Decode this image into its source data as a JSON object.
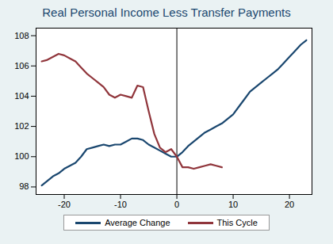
{
  "chart_data": {
    "type": "line",
    "title": "Real Personal Income Less Transfer Payments",
    "x": [
      -24,
      -23,
      -22,
      -21,
      -20,
      -19,
      -18,
      -17,
      -16,
      -15,
      -14,
      -13,
      -12,
      -11,
      -10,
      -9,
      -8,
      -7,
      -6,
      -5,
      -4,
      -3,
      -2,
      -1,
      0,
      1,
      2,
      3,
      4,
      5,
      6,
      7,
      8,
      9,
      10,
      11,
      12,
      13,
      14,
      15,
      16,
      17,
      18,
      19,
      20,
      21,
      22,
      23
    ],
    "series": [
      {
        "name": "Average Change",
        "color": "#1a476f",
        "values": [
          98.1,
          98.4,
          98.7,
          98.9,
          99.2,
          99.4,
          99.6,
          100.0,
          100.5,
          100.6,
          100.7,
          100.8,
          100.7,
          100.8,
          100.8,
          101.0,
          101.2,
          101.2,
          101.1,
          100.8,
          100.6,
          100.4,
          100.2,
          100.0,
          100.0,
          100.3,
          100.7,
          101.0,
          101.3,
          101.6,
          101.8,
          102.0,
          102.2,
          102.5,
          102.8,
          103.3,
          103.8,
          104.3,
          104.6,
          104.9,
          105.2,
          105.5,
          105.8,
          106.2,
          106.6,
          107.0,
          107.4,
          107.7
        ]
      },
      {
        "name": "This Cycle",
        "color": "#90353b",
        "values": [
          106.3,
          106.4,
          106.6,
          106.8,
          106.7,
          106.5,
          106.3,
          105.9,
          105.5,
          105.2,
          104.9,
          104.6,
          104.1,
          103.9,
          104.1,
          104.0,
          103.9,
          104.7,
          104.6,
          103.0,
          101.5,
          100.6,
          100.3,
          100.5,
          100.0,
          99.3,
          99.3,
          99.2,
          99.3,
          99.4,
          99.5,
          99.4,
          99.3,
          null,
          null,
          null,
          null,
          null,
          null,
          null,
          null,
          null,
          null,
          null,
          null,
          null,
          null,
          null
        ]
      }
    ],
    "xlim": [
      -25,
      24
    ],
    "xticks": [
      -20,
      -10,
      0,
      10,
      20
    ],
    "ylim": [
      97.5,
      108.5
    ],
    "yticks": [
      98,
      100,
      102,
      104,
      106,
      108
    ],
    "vline": 0,
    "grid": false,
    "legend": "bottom"
  }
}
